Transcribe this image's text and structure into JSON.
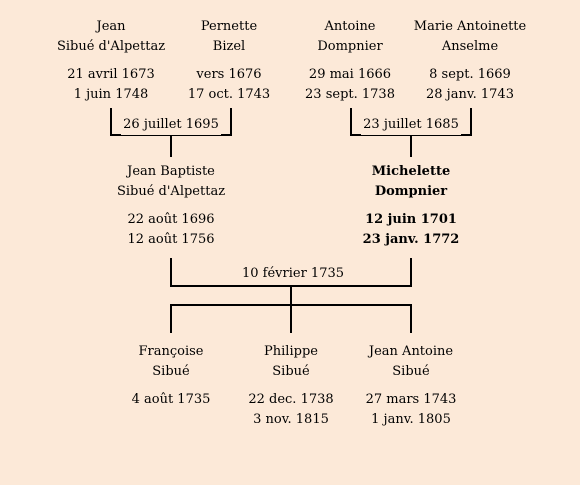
{
  "people": {
    "jean": {
      "line1": "Jean",
      "line2": "Sibué d'Alpettaz",
      "birth": "21 avril 1673",
      "death": "1 juin 1748"
    },
    "pernette": {
      "line1": "Pernette",
      "line2": "Bizel",
      "birth": "vers 1676",
      "death": "17 oct. 1743"
    },
    "antoine": {
      "line1": "Antoine",
      "line2": "Dompnier",
      "birth": "29 mai 1666",
      "death": "23 sept. 1738"
    },
    "marie": {
      "line1": "Marie Antoinette",
      "line2": "Anselme",
      "birth": "8 sept. 1669",
      "death": "28 janv. 1743"
    },
    "jean_baptiste": {
      "line1": "Jean Baptiste",
      "line2": "Sibué d'Alpettaz",
      "birth": "22 août 1696",
      "death": "12 août 1756"
    },
    "michelette": {
      "line1": "Michelette",
      "line2": "Dompnier",
      "birth": "12 juin 1701",
      "death": "23 janv. 1772"
    },
    "francoise": {
      "line1": "Françoise",
      "line2": "Sibué",
      "birth": "4 août 1735",
      "death": ""
    },
    "philippe": {
      "line1": "Philippe",
      "line2": "Sibué",
      "birth": "22 dec. 1738",
      "death": "3 nov. 1815"
    },
    "jean_antoine": {
      "line1": "Jean Antoine",
      "line2": "Sibué",
      "birth": "27 mars 1743",
      "death": "1 janv. 1805"
    }
  },
  "marriages": {
    "left": "26 juillet 1695",
    "right": "23 juillet 1685",
    "center": "10 février 1735"
  },
  "colors": {
    "background": "#fce9d8",
    "line": "#000000"
  }
}
